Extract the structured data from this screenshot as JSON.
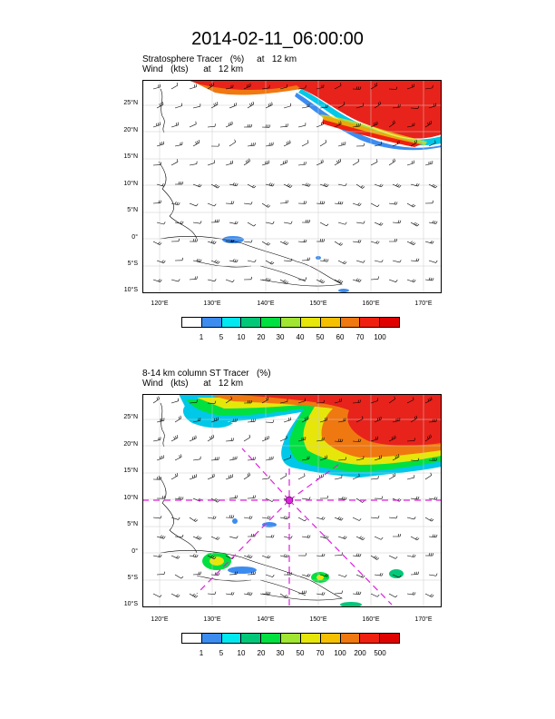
{
  "title": "2014-02-11_06:00:00",
  "panels": [
    {
      "line1": "Stratosphere Tracer   (%)     at   12 km",
      "line2": "Wind   (kts)      at   12 km",
      "colorbar": {
        "labels": [
          "1",
          "5",
          "10",
          "20",
          "30",
          "40",
          "50",
          "60",
          "70",
          "100"
        ],
        "colors": [
          "#ffffff",
          "#3c8cf0",
          "#00e8f0",
          "#00c878",
          "#00e040",
          "#a0e632",
          "#e6e60a",
          "#f5c000",
          "#f07810",
          "#f02010",
          "#e00000"
        ]
      }
    },
    {
      "line1": "8-14 km column ST Tracer   (%)",
      "line2": "Wind   (kts)      at   12 km",
      "colorbar": {
        "labels": [
          "1",
          "5",
          "10",
          "20",
          "30",
          "50",
          "70",
          "100",
          "200",
          "500"
        ],
        "colors": [
          "#ffffff",
          "#3c8cf0",
          "#00e8f0",
          "#00c878",
          "#00e040",
          "#a0e632",
          "#e6e60a",
          "#f5c000",
          "#f07810",
          "#f02010",
          "#e00000"
        ]
      }
    }
  ],
  "axes": {
    "lat_labels": [
      "25°N",
      "20°N",
      "15°N",
      "10°N",
      "5°N",
      "0°",
      "5°S",
      "10°S"
    ],
    "lon_labels": [
      "120°E",
      "130°E",
      "140°E",
      "150°E",
      "160°E",
      "170°E"
    ]
  }
}
